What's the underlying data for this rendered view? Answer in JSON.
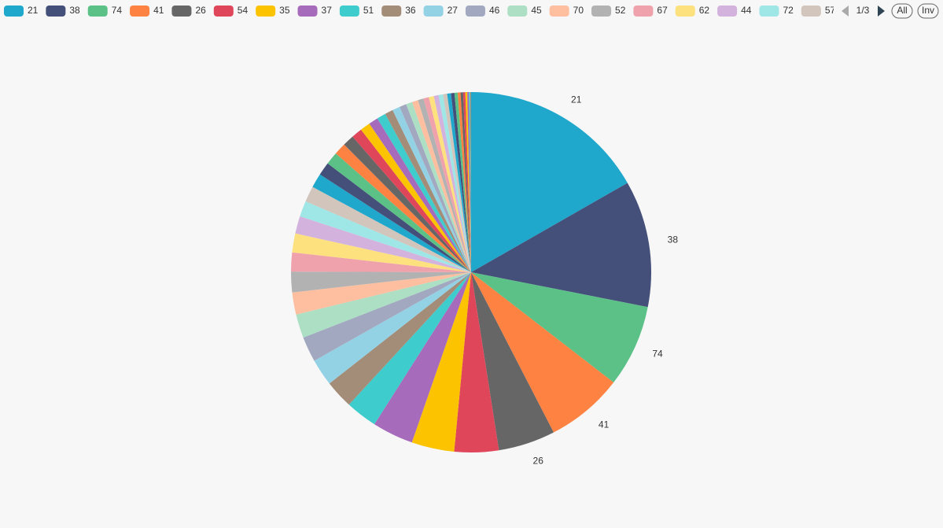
{
  "chart_data": {
    "type": "pie",
    "categories": [
      "21",
      "38",
      "74",
      "41",
      "26",
      "54",
      "35",
      "37",
      "51",
      "36",
      "27",
      "46",
      "45",
      "70",
      "52",
      "67",
      "62",
      "44",
      "72",
      "57",
      null,
      null,
      null,
      null,
      null,
      null,
      null,
      null,
      null,
      null,
      null,
      null,
      null,
      null,
      null,
      null,
      null,
      null,
      null,
      null,
      null,
      null,
      null,
      null,
      null,
      null,
      null,
      null,
      null,
      null
    ],
    "values": [
      59,
      40,
      26,
      24.5,
      18,
      14,
      13.5,
      13,
      10,
      9,
      8.5,
      8,
      7.5,
      7,
      6.5,
      6,
      6,
      5.5,
      5,
      5,
      4.5,
      4.2,
      4,
      3.8,
      3.6,
      3.4,
      3.2,
      3,
      2.8,
      2.6,
      2.4,
      2.2,
      2,
      1.9,
      1.8,
      1.7,
      1.6,
      1.5,
      1.4,
      1.3,
      1.2,
      1.1,
      1,
      0.9,
      0.8,
      0.7,
      0.6,
      0.5,
      0.4,
      0.3
    ],
    "colors": [
      "#1fa8cc",
      "#45507a",
      "#5bc187",
      "#fe8343",
      "#666666",
      "#e0465a",
      "#fcc300",
      "#a76bbb",
      "#3ecccc",
      "#a38c78",
      "#93d2e4",
      "#a2a8c0",
      "#acdfc3",
      "#febfa0",
      "#b2b2b2",
      "#efa2ab",
      "#fde17f",
      "#d3b3de",
      "#9fe6e6",
      "#d1c5bc"
    ],
    "legend_page": "1/3",
    "legend_buttons": [
      "All",
      "Inv"
    ]
  }
}
